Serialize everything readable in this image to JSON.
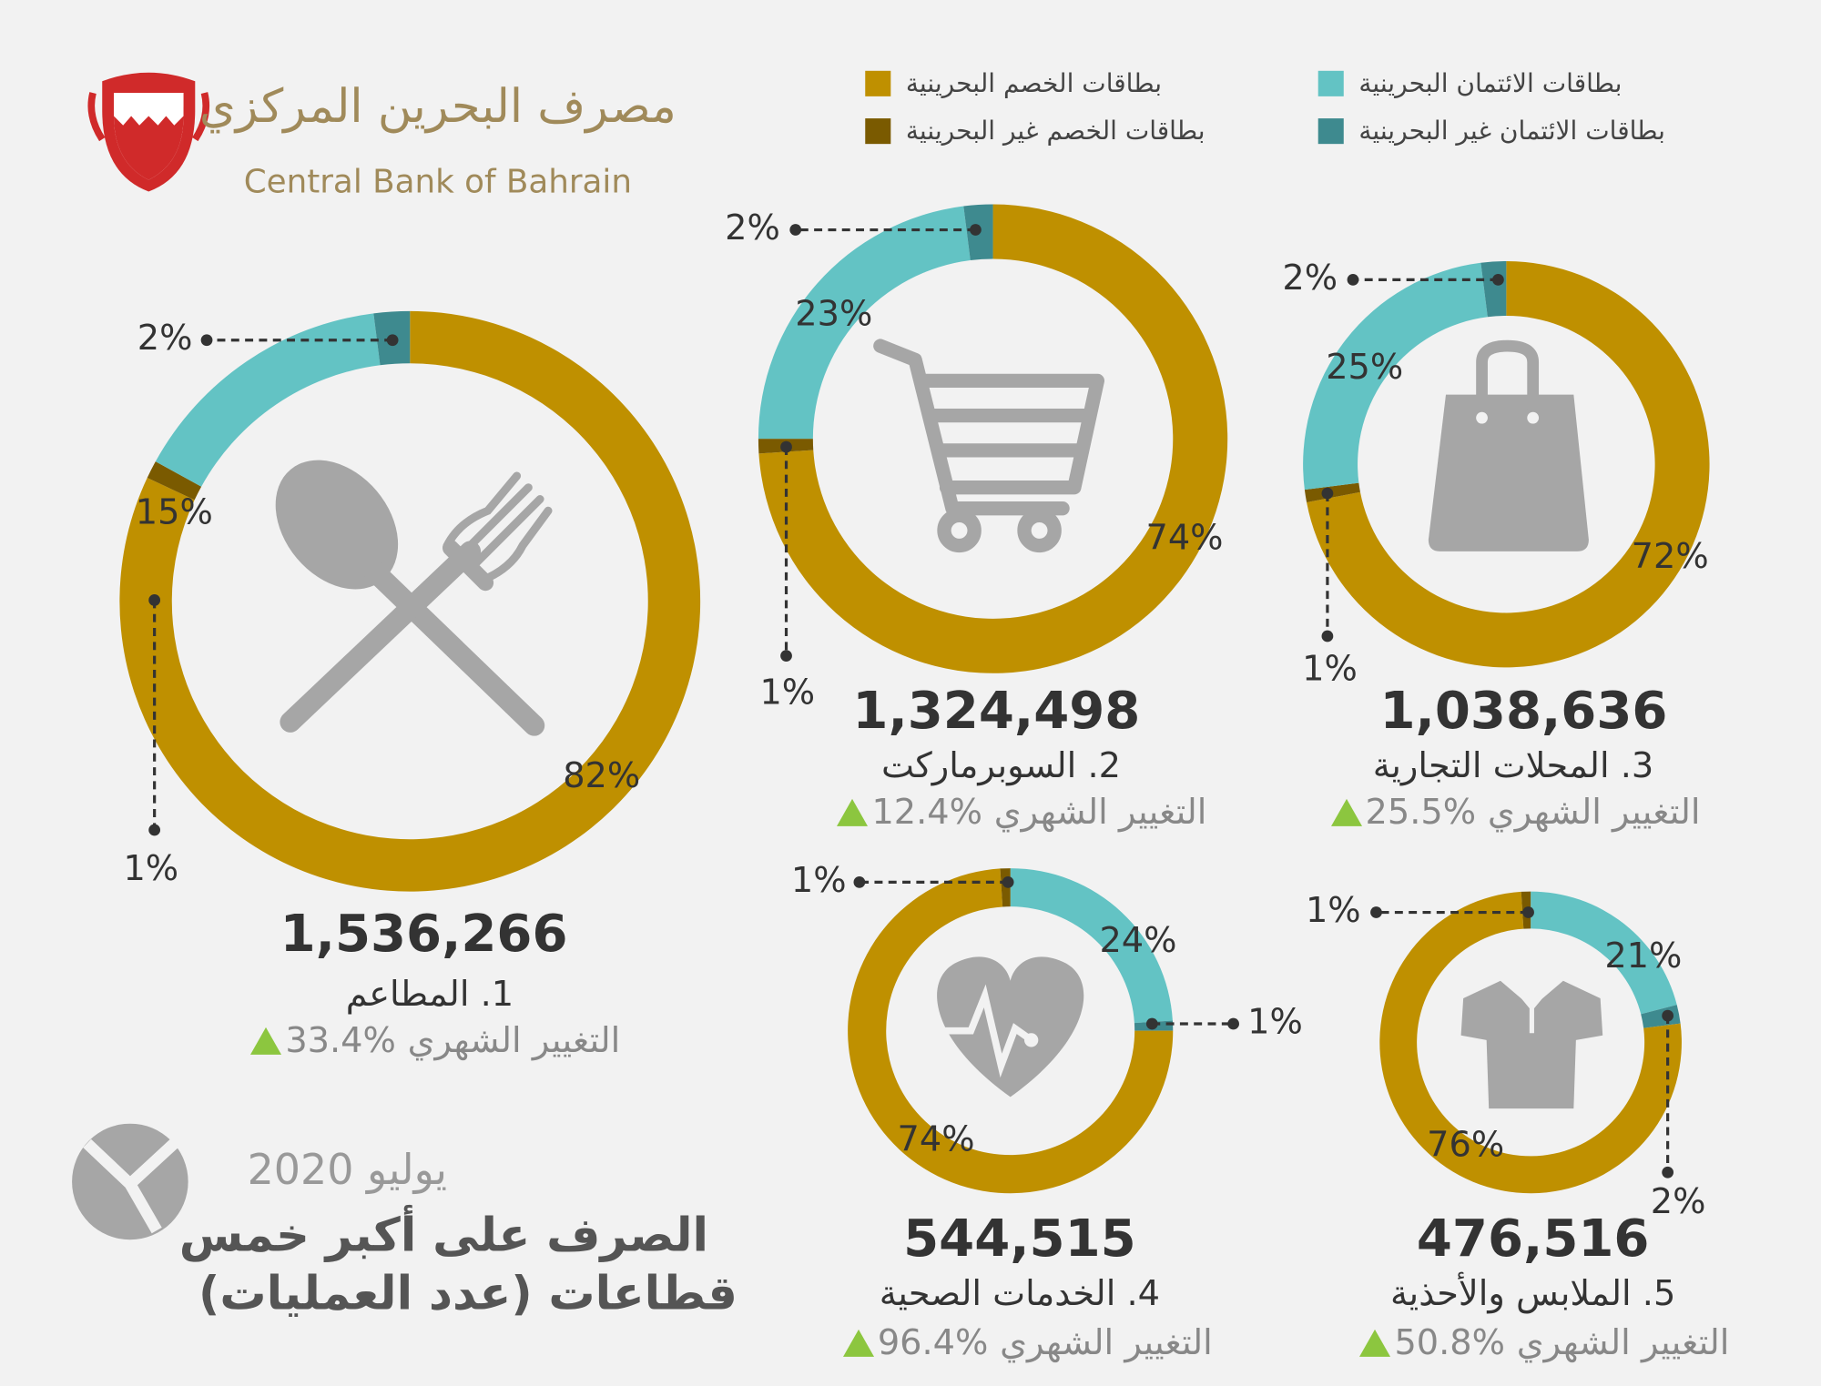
{
  "header": {
    "bank_ar": "مصرف البحرين المركزي",
    "bank_en": "Central Bank of Bahrain"
  },
  "legend": [
    {
      "name": "بطاقات الائتمان البحرينية",
      "color": "#63c3c4"
    },
    {
      "name": "بطاقات الخصم البحرينية",
      "color": "#bf9000"
    },
    {
      "name": "بطاقات الائتمان غير البحرينية",
      "color": "#3e8a8f"
    },
    {
      "name": "بطاقات الخصم غير البحرينية",
      "color": "#7a5a00"
    }
  ],
  "title": {
    "date": "يوليو 2020",
    "line1": "الصرف على أكبر خمس",
    "line2": "قطاعات (عدد العمليات)"
  },
  "chart_data": [
    {
      "type": "donut",
      "title": "1. المطاعم",
      "total": "1,536,266",
      "change_label": "التغيير الشهري",
      "change": "33.4%",
      "values": [
        82,
        1,
        15,
        2
      ],
      "value_labels": [
        "82%",
        "1%",
        "15%",
        "2%"
      ],
      "colors": [
        "#bf9000",
        "#7a5a00",
        "#63c3c4",
        "#3e8a8f"
      ]
    },
    {
      "type": "donut",
      "title": "2. السوبرماركت",
      "total": "1,324,498",
      "change_label": "التغيير الشهري",
      "change": "12.4%",
      "values": [
        74,
        1,
        23,
        2
      ],
      "value_labels": [
        "74%",
        "1%",
        "23%",
        "2%"
      ],
      "colors": [
        "#bf9000",
        "#7a5a00",
        "#63c3c4",
        "#3e8a8f"
      ]
    },
    {
      "type": "donut",
      "title": "3. المحلات التجارية",
      "total": "1,038,636",
      "change_label": "التغيير الشهري",
      "change": "25.5%",
      "values": [
        72,
        1,
        25,
        2
      ],
      "value_labels": [
        "72%",
        "1%",
        "25%",
        "2%"
      ],
      "colors": [
        "#bf9000",
        "#7a5a00",
        "#63c3c4",
        "#3e8a8f"
      ]
    },
    {
      "type": "donut",
      "title": "4. الخدمات الصحية",
      "total": "544,515",
      "change_label": "التغيير الشهري",
      "change": "96.4%",
      "values": [
        24,
        1,
        74,
        1
      ],
      "value_labels": [
        "24%",
        "1%",
        "74%",
        "1%"
      ],
      "colors": [
        "#63c3c4",
        "#3e8a8f",
        "#bf9000",
        "#7a5a00"
      ]
    },
    {
      "type": "donut",
      "title": "5. الملابس والأحذية",
      "total": "476,516",
      "change_label": "التغيير الشهري",
      "change": "50.8%",
      "values": [
        21,
        2,
        76,
        1
      ],
      "value_labels": [
        "21%",
        "2%",
        "76%",
        "1%"
      ],
      "colors": [
        "#63c3c4",
        "#3e8a8f",
        "#bf9000",
        "#7a5a00"
      ]
    }
  ]
}
